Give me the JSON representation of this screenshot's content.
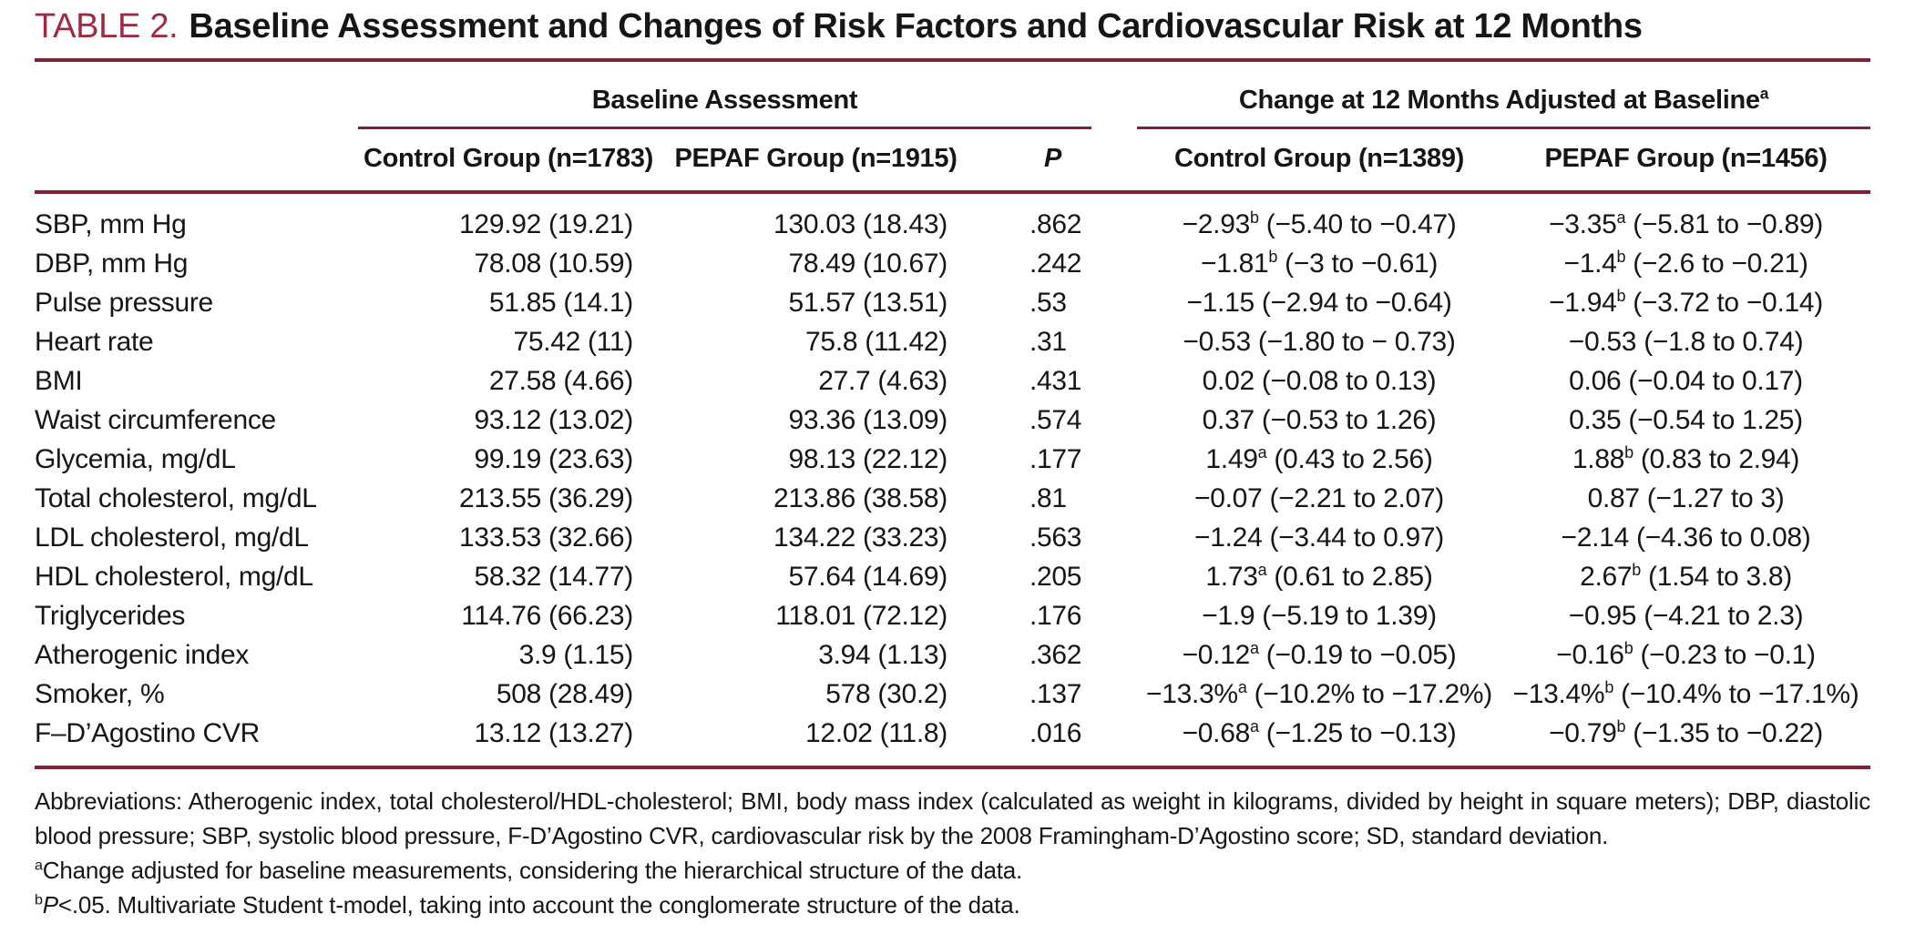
{
  "colors": {
    "accent_red": "#9e2b43",
    "rule": "#7d2133"
  },
  "header": {
    "tag": "TABLE 2.",
    "title": "Baseline Assessment and Changes of Risk Factors and Cardiovascular Risk at 12 Months"
  },
  "table": {
    "groups": [
      {
        "label": "Baseline Assessment",
        "sup": ""
      },
      {
        "label": "Change at 12 Months Adjusted at Baseline",
        "sup": "a"
      }
    ],
    "columns": [
      "Control Group (n=1783)",
      "PEPAF Group (n=1915)",
      "P",
      "Control Group (n=1389)",
      "PEPAF Group (n=1456)"
    ],
    "rows": [
      {
        "label": "SBP, mm Hg",
        "baseline_control": "129.92 (19.21)",
        "baseline_pepaf": "130.03 (18.43)",
        "p": ".862",
        "change_control": {
          "value": "−2.93",
          "sup": "b",
          "ci": "(−5.40 to −0.47)"
        },
        "change_pepaf": {
          "value": "−3.35",
          "sup": "a",
          "ci": "(−5.81 to −0.89)"
        }
      },
      {
        "label": "DBP, mm Hg",
        "baseline_control": "78.08 (10.59)",
        "baseline_pepaf": "78.49 (10.67)",
        "p": ".242",
        "change_control": {
          "value": "−1.81",
          "sup": "b",
          "ci": "(−3 to −0.61)"
        },
        "change_pepaf": {
          "value": "−1.4",
          "sup": "b",
          "ci": "(−2.6 to −0.21)"
        }
      },
      {
        "label": "Pulse pressure",
        "baseline_control": "51.85 (14.1)",
        "baseline_pepaf": "51.57 (13.51)",
        "p": ".53",
        "change_control": {
          "value": "−1.15",
          "sup": "",
          "ci": "(−2.94 to −0.64)"
        },
        "change_pepaf": {
          "value": "−1.94",
          "sup": "b",
          "ci": "(−3.72 to −0.14)"
        }
      },
      {
        "label": "Heart rate",
        "baseline_control": "75.42 (11)",
        "baseline_pepaf": "75.8 (11.42)",
        "p": ".31",
        "change_control": {
          "value": "−0.53",
          "sup": "",
          "ci": "(−1.80 to − 0.73)"
        },
        "change_pepaf": {
          "value": "−0.53",
          "sup": "",
          "ci": "(−1.8 to 0.74)"
        }
      },
      {
        "label": "BMI",
        "baseline_control": "27.58 (4.66)",
        "baseline_pepaf": "27.7 (4.63)",
        "p": ".431",
        "change_control": {
          "value": "0.02",
          "sup": "",
          "ci": "(−0.08 to 0.13)"
        },
        "change_pepaf": {
          "value": "0.06",
          "sup": "",
          "ci": "(−0.04 to 0.17)"
        }
      },
      {
        "label": "Waist circumference",
        "baseline_control": "93.12 (13.02)",
        "baseline_pepaf": "93.36 (13.09)",
        "p": ".574",
        "change_control": {
          "value": "0.37",
          "sup": "",
          "ci": "(−0.53 to 1.26)"
        },
        "change_pepaf": {
          "value": "0.35",
          "sup": "",
          "ci": "(−0.54 to 1.25)"
        }
      },
      {
        "label": "Glycemia, mg/dL",
        "baseline_control": "99.19 (23.63)",
        "baseline_pepaf": "98.13 (22.12)",
        "p": ".177",
        "change_control": {
          "value": "1.49",
          "sup": "a",
          "ci": "(0.43 to 2.56)"
        },
        "change_pepaf": {
          "value": "1.88",
          "sup": "b",
          "ci": "(0.83 to 2.94)"
        }
      },
      {
        "label": "Total cholesterol, mg/dL",
        "baseline_control": "213.55 (36.29)",
        "baseline_pepaf": "213.86 (38.58)",
        "p": ".81",
        "change_control": {
          "value": "−0.07",
          "sup": "",
          "ci": "(−2.21 to 2.07)"
        },
        "change_pepaf": {
          "value": "0.87",
          "sup": "",
          "ci": "(−1.27 to 3)"
        }
      },
      {
        "label": "LDL cholesterol, mg/dL",
        "baseline_control": "133.53 (32.66)",
        "baseline_pepaf": "134.22 (33.23)",
        "p": ".563",
        "change_control": {
          "value": "−1.24",
          "sup": "",
          "ci": "(−3.44 to 0.97)"
        },
        "change_pepaf": {
          "value": "−2.14",
          "sup": "",
          "ci": "(−4.36 to 0.08)"
        }
      },
      {
        "label": "HDL cholesterol, mg/dL",
        "baseline_control": "58.32 (14.77)",
        "baseline_pepaf": "57.64 (14.69)",
        "p": ".205",
        "change_control": {
          "value": "1.73",
          "sup": "a",
          "ci": "(0.61 to 2.85)"
        },
        "change_pepaf": {
          "value": "2.67",
          "sup": "b",
          "ci": "(1.54 to 3.8)"
        }
      },
      {
        "label": "Triglycerides",
        "baseline_control": "114.76 (66.23)",
        "baseline_pepaf": "118.01 (72.12)",
        "p": ".176",
        "change_control": {
          "value": "−1.9",
          "sup": "",
          "ci": "(−5.19 to 1.39)"
        },
        "change_pepaf": {
          "value": "−0.95",
          "sup": "",
          "ci": "(−4.21 to 2.3)"
        }
      },
      {
        "label": "Atherogenic index",
        "baseline_control": "3.9 (1.15)",
        "baseline_pepaf": "3.94 (1.13)",
        "p": ".362",
        "change_control": {
          "value": "−0.12",
          "sup": "a",
          "ci": "(−0.19 to −0.05)"
        },
        "change_pepaf": {
          "value": "−0.16",
          "sup": "b",
          "ci": "(−0.23 to −0.1)"
        }
      },
      {
        "label": "Smoker, %",
        "baseline_control": "508 (28.49)",
        "baseline_pepaf": "578 (30.2)",
        "p": ".137",
        "change_control": {
          "value": "−13.3%",
          "sup": "a",
          "ci": "(−10.2% to −17.2%)"
        },
        "change_pepaf": {
          "value": "−13.4%",
          "sup": "b",
          "ci": "(−10.4% to −17.1%)"
        }
      },
      {
        "label": "F–D’Agostino CVR",
        "baseline_control": "13.12 (13.27)",
        "baseline_pepaf": "12.02 (11.8)",
        "p": ".016",
        "change_control": {
          "value": "−0.68",
          "sup": "a",
          "ci": "(−1.25 to −0.13)"
        },
        "change_pepaf": {
          "value": "−0.79",
          "sup": "b",
          "ci": "(−1.35 to −0.22)"
        }
      }
    ]
  },
  "footnotes": [
    {
      "sup": "",
      "italic_lead": "",
      "justify": true,
      "text": "Abbreviations: Atherogenic index, total cholesterol/HDL-cholesterol; BMI, body mass index (calculated as weight in kilograms, divided by height in square meters); DBP, diastolic blood pressure; SBP, systolic blood pressure, F-D’Agostino CVR, cardiovascular risk by the 2008 Framingham-D’Agostino score; SD, standard deviation."
    },
    {
      "sup": "a",
      "italic_lead": "",
      "justify": false,
      "text": "Change adjusted for baseline measurements, considering the hierarchical structure of the data."
    },
    {
      "sup": "b",
      "italic_lead": "P",
      "justify": false,
      "text": "<.05. Multivariate Student t-model, taking into account the conglomerate structure of the data."
    }
  ]
}
